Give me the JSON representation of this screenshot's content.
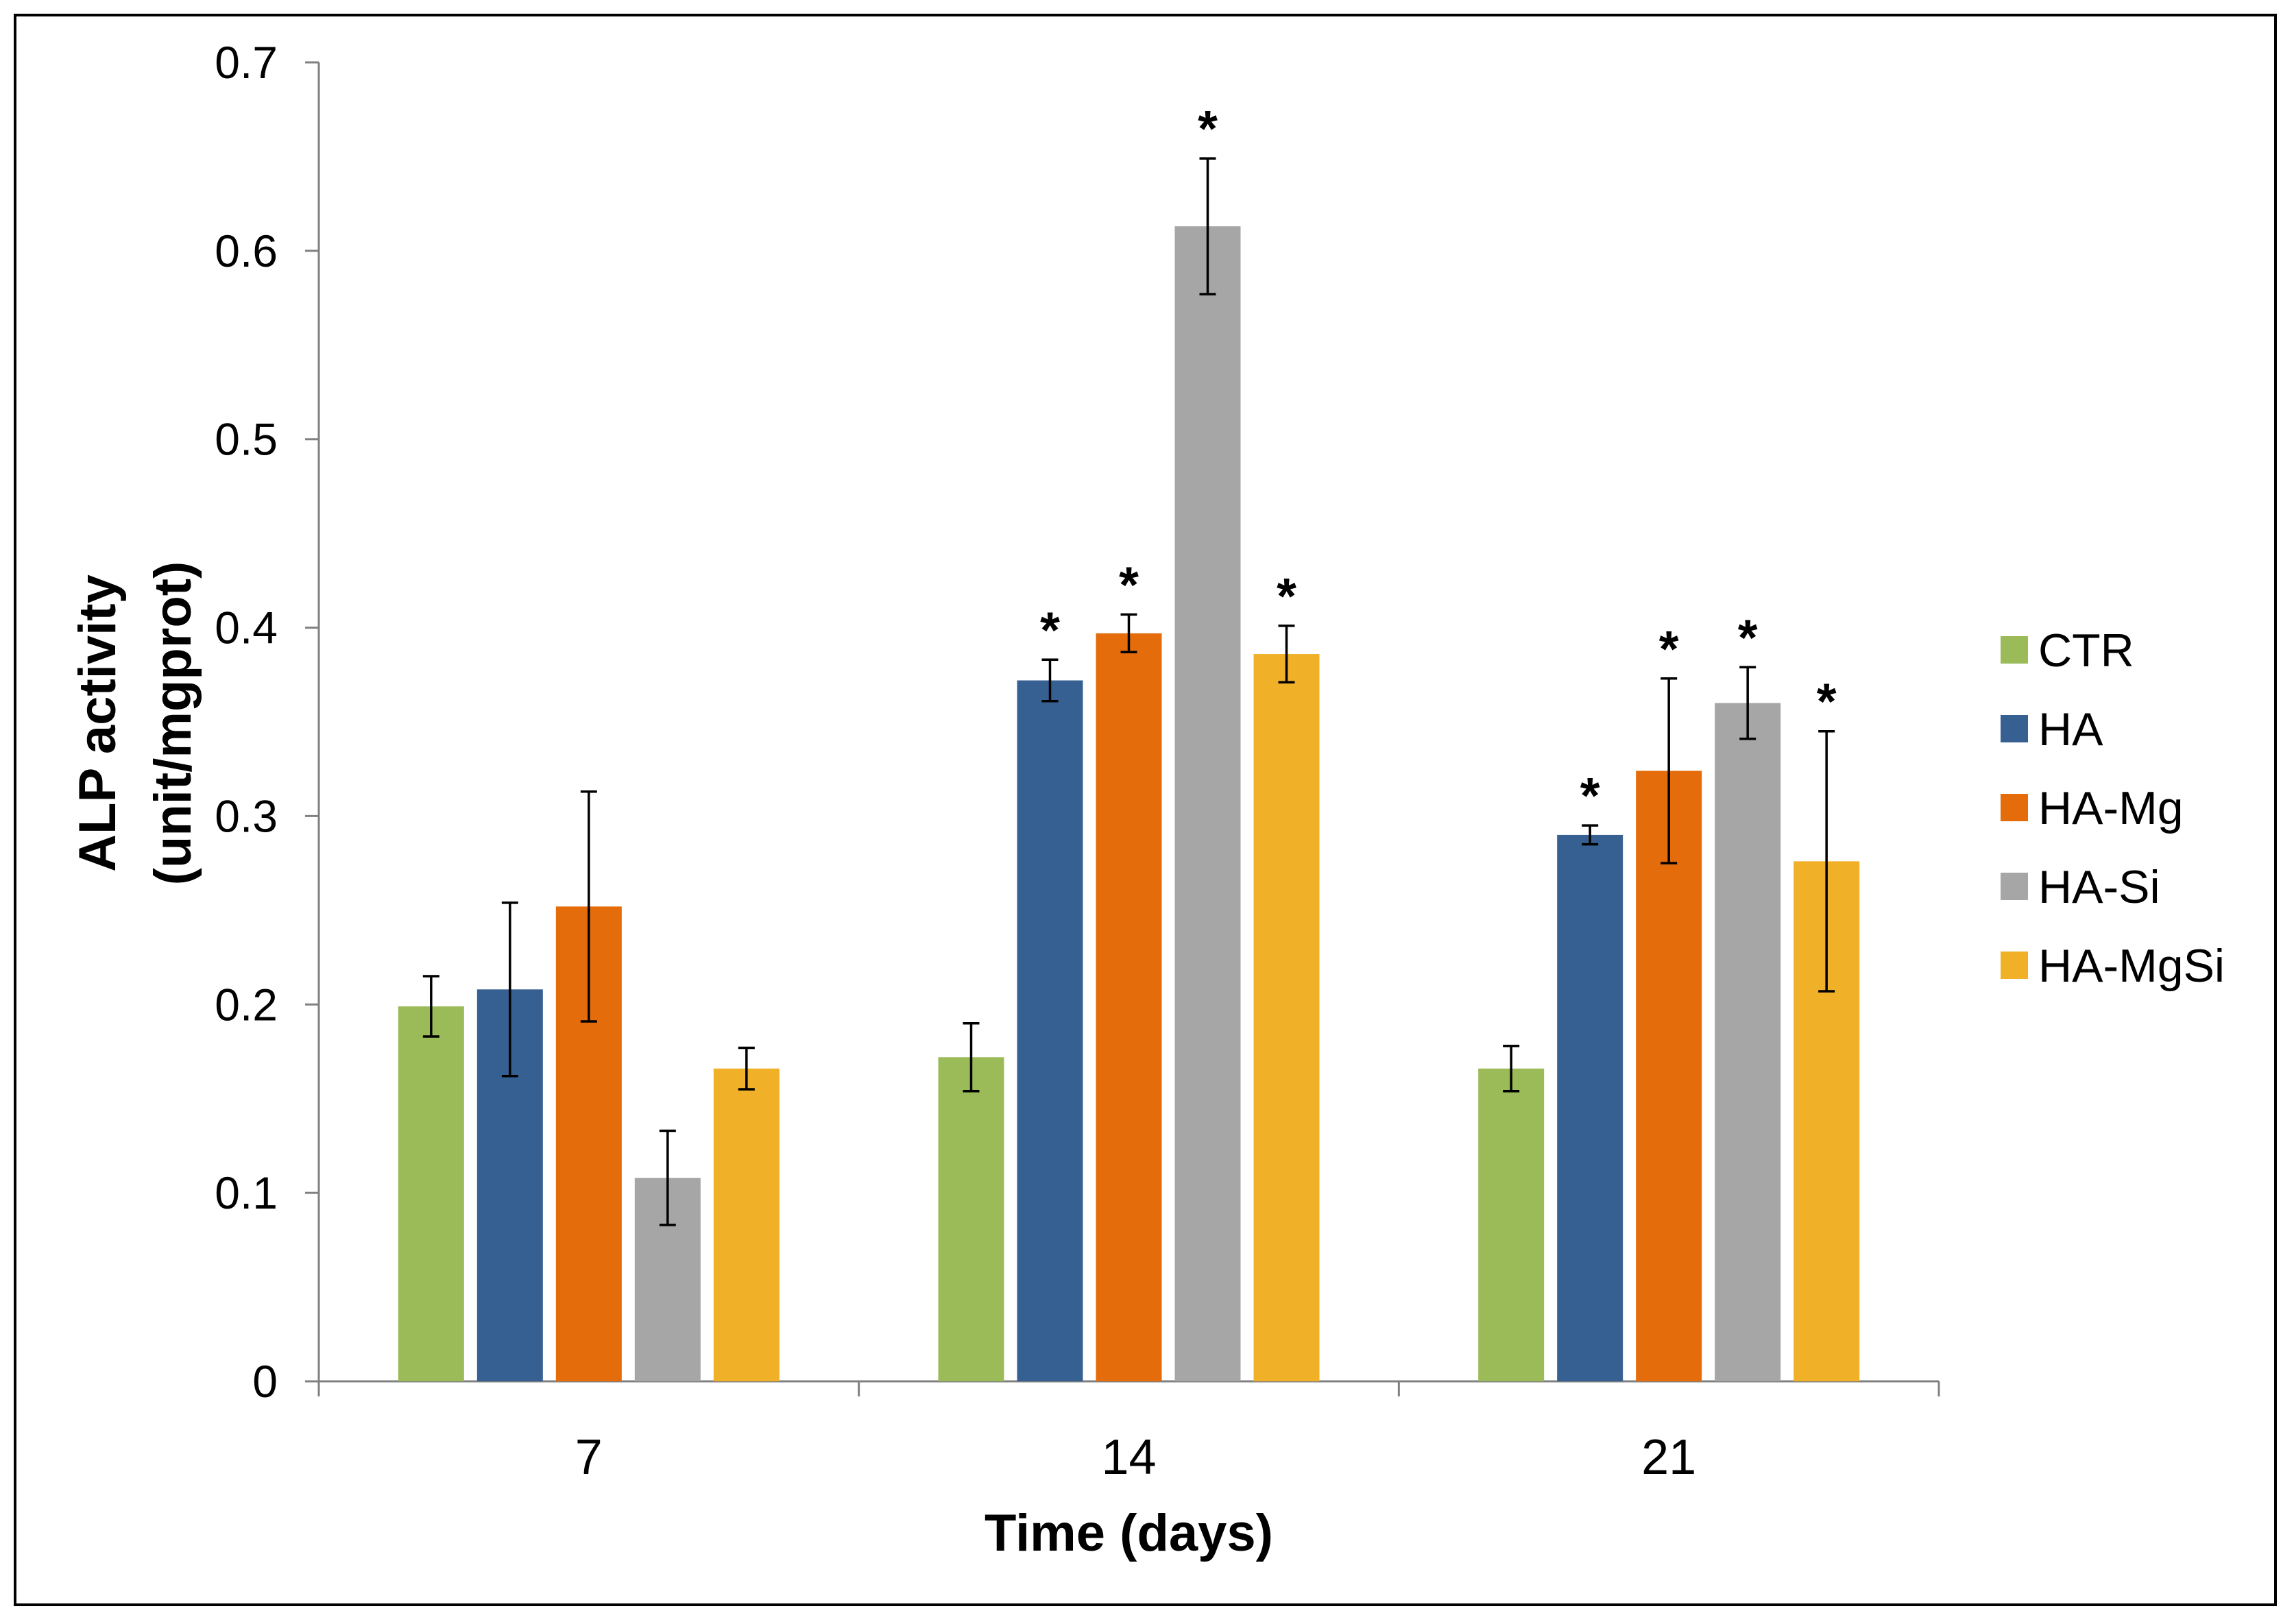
{
  "chart_data": {
    "type": "bar",
    "title": "",
    "xlabel": "Time (days)",
    "ylabel_line1": "ALP activity",
    "ylabel_line2": "(unit/mgprot)",
    "ylim": [
      0,
      0.7
    ],
    "yticks": [
      "0",
      "0.1",
      "0.2",
      "0.3",
      "0.4",
      "0.5",
      "0.6",
      "0.7"
    ],
    "ytick_values": [
      0,
      0.1,
      0.2,
      0.3,
      0.4,
      0.5,
      0.6,
      0.7
    ],
    "categories": [
      "7",
      "14",
      "21"
    ],
    "legend_position": "right",
    "significance_marker": "*",
    "series": [
      {
        "name": "CTR",
        "color": "#9bbb59",
        "values": [
          0.199,
          0.172,
          0.166
        ],
        "errors": [
          0.016,
          0.018,
          0.012
        ],
        "significant": [
          false,
          false,
          false
        ]
      },
      {
        "name": "HA",
        "color": "#376092",
        "values": [
          0.208,
          0.372,
          0.29
        ],
        "errors": [
          0.046,
          0.011,
          0.005
        ],
        "significant": [
          false,
          true,
          true
        ]
      },
      {
        "name": "HA-Mg",
        "color": "#e46c0a",
        "values": [
          0.252,
          0.397,
          0.324
        ],
        "errors": [
          0.061,
          0.01,
          0.049
        ],
        "significant": [
          false,
          true,
          true
        ]
      },
      {
        "name": "HA-Si",
        "color": "#a6a6a6",
        "values": [
          0.108,
          0.613,
          0.36
        ],
        "errors": [
          0.025,
          0.036,
          0.019
        ],
        "significant": [
          false,
          true,
          true
        ]
      },
      {
        "name": "HA-MgSi",
        "color": "#f0b028",
        "values": [
          0.166,
          0.386,
          0.276
        ],
        "errors": [
          0.011,
          0.015,
          0.069
        ],
        "significant": [
          false,
          true,
          true
        ]
      }
    ]
  }
}
